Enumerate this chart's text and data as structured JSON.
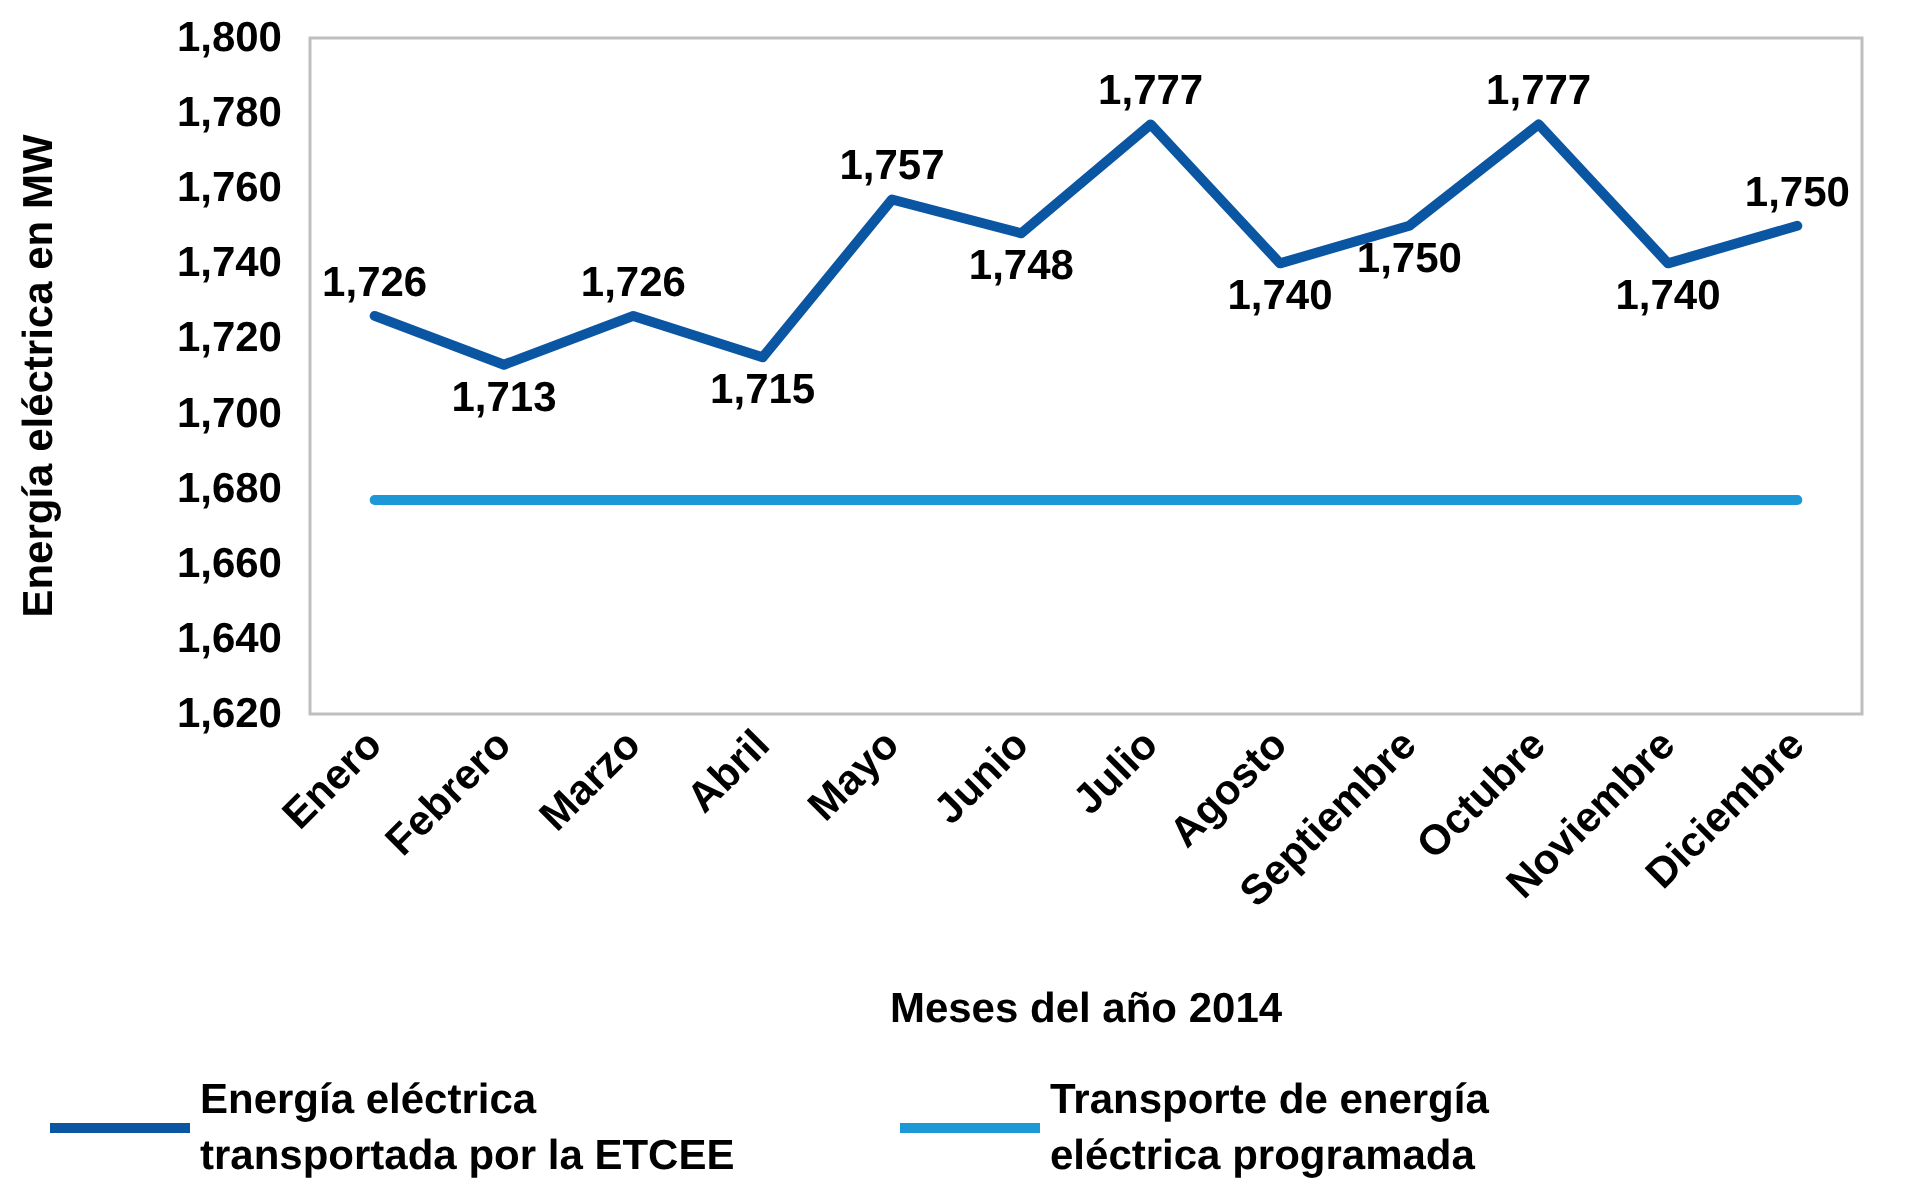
{
  "chart_data": {
    "type": "line",
    "xlabel": "Meses del año 2014",
    "ylabel": "Energía eléctrica en MW",
    "categories": [
      "Enero",
      "Febrero",
      "Marzo",
      "Abril",
      "Mayo",
      "Junio",
      "Julio",
      "Agosto",
      "Septiembre",
      "Octubre",
      "Noviembre",
      "Diciembre"
    ],
    "series": [
      {
        "name": "Energía eléctrica transportada por la ETCEE",
        "color": "#0b56a3",
        "values": [
          1726,
          1713,
          1726,
          1715,
          1757,
          1748,
          1777,
          1740,
          1750,
          1777,
          1740,
          1750
        ],
        "value_labels": [
          "1,726",
          "1,713",
          "1,726",
          "1,715",
          "1,757",
          "1,748",
          "1,777",
          "1,740",
          "1,750",
          "1,777",
          "1,740",
          "1,750"
        ]
      },
      {
        "name": "Transporte de energía eléctrica programada",
        "color": "#1b98d5",
        "values": [
          1677,
          1677,
          1677,
          1677,
          1677,
          1677,
          1677,
          1677,
          1677,
          1677,
          1677,
          1677
        ]
      }
    ],
    "ylim": [
      1620,
      1800
    ],
    "yticks": [
      {
        "value": 1620,
        "label": "1,620"
      },
      {
        "value": 1640,
        "label": "1,640"
      },
      {
        "value": 1660,
        "label": "1,660"
      },
      {
        "value": 1680,
        "label": "1,680"
      },
      {
        "value": 1700,
        "label": "1,700"
      },
      {
        "value": 1720,
        "label": "1,720"
      },
      {
        "value": 1740,
        "label": "1,740"
      },
      {
        "value": 1760,
        "label": "1,760"
      },
      {
        "value": 1780,
        "label": "1,780"
      },
      {
        "value": 1800,
        "label": "1,800"
      }
    ],
    "grid": false,
    "legend": "bottom",
    "marker": "none",
    "line_style": "solid"
  }
}
